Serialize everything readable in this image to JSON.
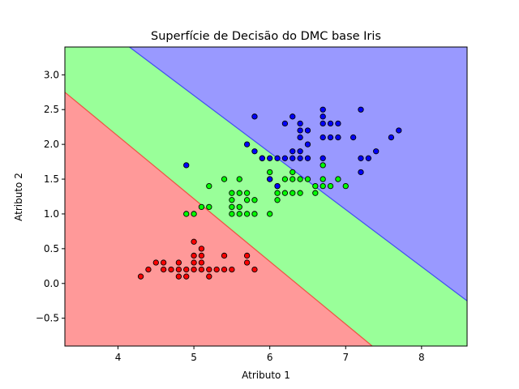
{
  "chart_data": {
    "type": "scatter",
    "title": "Superfície de Decisão do DMC base Iris",
    "xlabel": "Atributo 1",
    "ylabel": "Atributo 2",
    "xlim": [
      3.3,
      8.6
    ],
    "ylim": [
      -0.9,
      3.4
    ],
    "xticks": [
      "4",
      "5",
      "6",
      "7",
      "8"
    ],
    "yticks": [
      "−0.5",
      "0.0",
      "0.5",
      "1.0",
      "1.5",
      "2.0",
      "2.5",
      "3.0"
    ],
    "grid": false,
    "regions": [
      {
        "label_color": "#ff9999",
        "edge_color": "#ff0000"
      },
      {
        "label_color": "#99ff99",
        "edge_color": "#00ff00"
      },
      {
        "label_color": "#9999ff",
        "edge_color": "#0000ff"
      }
    ],
    "boundaries": [
      {
        "between": [
          0,
          1
        ],
        "points": [
          [
            3.3,
            2.75
          ],
          [
            7.35,
            -0.9
          ]
        ]
      },
      {
        "between": [
          1,
          2
        ],
        "points": [
          [
            4.15,
            3.4
          ],
          [
            8.6,
            -0.25
          ]
        ]
      }
    ],
    "series": [
      {
        "color": "#ff0000",
        "points": [
          [
            4.3,
            0.1
          ],
          [
            4.4,
            0.2
          ],
          [
            4.5,
            0.3
          ],
          [
            4.6,
            0.2
          ],
          [
            4.6,
            0.3
          ],
          [
            4.7,
            0.2
          ],
          [
            4.8,
            0.1
          ],
          [
            4.8,
            0.2
          ],
          [
            4.8,
            0.3
          ],
          [
            4.9,
            0.1
          ],
          [
            4.9,
            0.2
          ],
          [
            5.0,
            0.2
          ],
          [
            5.0,
            0.3
          ],
          [
            5.0,
            0.4
          ],
          [
            5.0,
            0.6
          ],
          [
            5.1,
            0.2
          ],
          [
            5.1,
            0.3
          ],
          [
            5.1,
            0.4
          ],
          [
            5.1,
            0.5
          ],
          [
            5.2,
            0.1
          ],
          [
            5.2,
            0.2
          ],
          [
            5.3,
            0.2
          ],
          [
            5.4,
            0.2
          ],
          [
            5.4,
            0.4
          ],
          [
            5.5,
            0.2
          ],
          [
            5.7,
            0.3
          ],
          [
            5.7,
            0.4
          ],
          [
            5.8,
            0.2
          ]
        ]
      },
      {
        "color": "#00ff00",
        "points": [
          [
            4.9,
            1.0
          ],
          [
            5.0,
            1.0
          ],
          [
            5.1,
            1.1
          ],
          [
            5.2,
            1.4
          ],
          [
            5.4,
            1.5
          ],
          [
            5.5,
            1.0
          ],
          [
            5.5,
            1.1
          ],
          [
            5.5,
            1.2
          ],
          [
            5.5,
            1.3
          ],
          [
            5.6,
            1.0
          ],
          [
            5.6,
            1.1
          ],
          [
            5.6,
            1.3
          ],
          [
            5.6,
            1.5
          ],
          [
            5.7,
            1.0
          ],
          [
            5.7,
            1.2
          ],
          [
            5.7,
            1.3
          ],
          [
            5.8,
            1.0
          ],
          [
            5.8,
            1.2
          ],
          [
            5.9,
            1.8
          ],
          [
            6.0,
            1.0
          ],
          [
            6.0,
            1.5
          ],
          [
            6.0,
            1.6
          ],
          [
            6.1,
            1.2
          ],
          [
            6.1,
            1.3
          ],
          [
            6.1,
            1.4
          ],
          [
            6.2,
            1.3
          ],
          [
            6.2,
            1.5
          ],
          [
            6.3,
            1.3
          ],
          [
            6.3,
            1.5
          ],
          [
            6.3,
            1.6
          ],
          [
            6.4,
            1.3
          ],
          [
            6.4,
            1.5
          ],
          [
            6.5,
            1.5
          ],
          [
            6.6,
            1.3
          ],
          [
            6.6,
            1.4
          ],
          [
            6.7,
            1.4
          ],
          [
            6.7,
            1.5
          ],
          [
            6.7,
            1.7
          ],
          [
            6.8,
            1.4
          ],
          [
            6.9,
            1.5
          ],
          [
            7.0,
            1.4
          ],
          [
            5.2,
            1.1
          ]
        ]
      },
      {
        "color": "#0000ff",
        "points": [
          [
            4.9,
            1.7
          ],
          [
            5.7,
            2.0
          ],
          [
            5.8,
            1.9
          ],
          [
            5.8,
            2.4
          ],
          [
            6.0,
            1.5
          ],
          [
            6.0,
            1.8
          ],
          [
            6.1,
            1.4
          ],
          [
            6.1,
            1.8
          ],
          [
            6.2,
            1.8
          ],
          [
            6.2,
            2.3
          ],
          [
            6.3,
            1.8
          ],
          [
            6.3,
            1.9
          ],
          [
            6.3,
            2.4
          ],
          [
            6.4,
            1.8
          ],
          [
            6.4,
            1.9
          ],
          [
            6.4,
            2.1
          ],
          [
            6.4,
            2.2
          ],
          [
            6.4,
            2.3
          ],
          [
            6.5,
            1.8
          ],
          [
            6.5,
            2.0
          ],
          [
            6.5,
            2.2
          ],
          [
            6.7,
            1.8
          ],
          [
            6.7,
            2.1
          ],
          [
            6.7,
            2.3
          ],
          [
            6.7,
            2.4
          ],
          [
            6.7,
            2.5
          ],
          [
            6.8,
            2.1
          ],
          [
            6.8,
            2.3
          ],
          [
            6.9,
            2.1
          ],
          [
            6.9,
            2.3
          ],
          [
            7.1,
            2.1
          ],
          [
            7.2,
            1.6
          ],
          [
            7.2,
            1.8
          ],
          [
            7.2,
            2.5
          ],
          [
            7.3,
            1.8
          ],
          [
            7.4,
            1.9
          ],
          [
            7.6,
            2.1
          ],
          [
            7.7,
            2.2
          ],
          [
            5.9,
            1.8
          ]
        ]
      }
    ]
  }
}
